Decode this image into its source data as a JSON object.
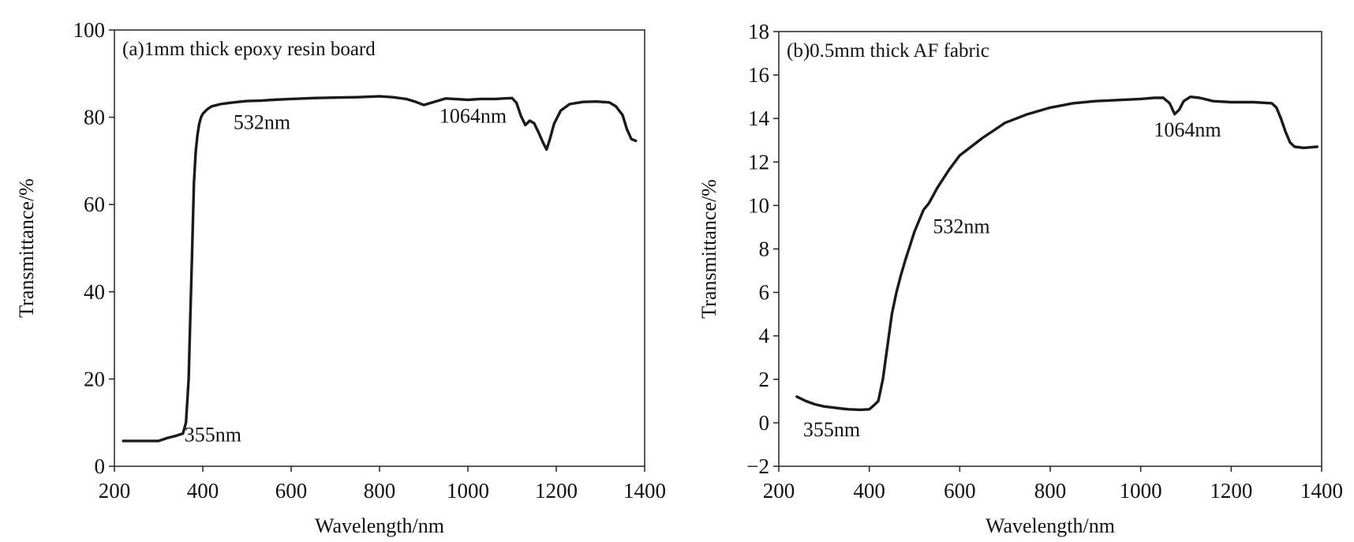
{
  "chart_data": [
    {
      "type": "line",
      "panel_label": "(a)1mm thick epoxy resin board",
      "xlabel": "Wavelength/nm",
      "ylabel": "Transmittance/%",
      "xlim": [
        200,
        1400
      ],
      "ylim": [
        0,
        100
      ],
      "xticks": [
        200,
        400,
        600,
        800,
        1000,
        1200,
        1400
      ],
      "yticks": [
        0,
        20,
        40,
        60,
        80,
        100
      ],
      "xtick_labels": [
        "200",
        "400",
        "600",
        "800",
        "1000",
        "1200",
        "1400"
      ],
      "ytick_labels": [
        "0",
        "20",
        "40",
        "60",
        "80",
        "100"
      ],
      "grid": false,
      "series": [
        {
          "x": [
            220,
            300,
            320,
            340,
            355,
            362,
            368,
            372,
            376,
            380,
            384,
            388,
            392,
            396,
            400,
            410,
            420,
            440,
            460,
            480,
            500,
            532,
            560,
            600,
            650,
            700,
            750,
            800,
            830,
            860,
            880,
            900,
            920,
            950,
            1000,
            1030,
            1064,
            1080,
            1100,
            1110,
            1120,
            1130,
            1140,
            1150,
            1160,
            1170,
            1178,
            1185,
            1195,
            1210,
            1230,
            1260,
            1290,
            1320,
            1335,
            1350,
            1360,
            1370,
            1380
          ],
          "y": [
            5.8,
            5.8,
            6.5,
            7.0,
            7.5,
            10,
            20,
            35,
            50,
            65,
            72,
            76,
            78.5,
            80,
            80.8,
            81.8,
            82.5,
            83,
            83.3,
            83.5,
            83.7,
            83.8,
            84,
            84.2,
            84.4,
            84.5,
            84.6,
            84.8,
            84.6,
            84.2,
            83.6,
            82.8,
            83.4,
            84.3,
            84.0,
            84.2,
            84.2,
            84.3,
            84.4,
            83.3,
            80.3,
            78.2,
            79.2,
            78.6,
            76.5,
            74.2,
            72.6,
            74.8,
            78.5,
            81.5,
            83.0,
            83.5,
            83.6,
            83.4,
            82.5,
            80.5,
            77.2,
            75.0,
            74.6
          ]
        }
      ],
      "annotations": [
        {
          "text": "355nm",
          "x": 355,
          "y": 7.5
        },
        {
          "text": "532nm",
          "x": 532,
          "y": 83.8
        },
        {
          "text": "1064nm",
          "x": 1064,
          "y": 84.2
        }
      ]
    },
    {
      "type": "line",
      "panel_label": "(b)0.5mm thick AF fabric",
      "xlabel": "Wavelength/nm",
      "ylabel": "Transmittance/%",
      "xlim": [
        200,
        1400
      ],
      "ylim": [
        -2,
        18
      ],
      "xticks": [
        200,
        400,
        600,
        800,
        1000,
        1200,
        1400
      ],
      "yticks": [
        -2,
        0,
        2,
        4,
        6,
        8,
        10,
        12,
        14,
        16,
        18
      ],
      "xtick_labels": [
        "200",
        "400",
        "600",
        "800",
        "1000",
        "1200",
        "1400"
      ],
      "ytick_labels": [
        "−2",
        "0",
        "2",
        "4",
        "6",
        "8",
        "10",
        "12",
        "14",
        "16",
        "18"
      ],
      "grid": false,
      "series": [
        {
          "x": [
            240,
            260,
            280,
            300,
            320,
            340,
            355,
            380,
            400,
            410,
            420,
            430,
            440,
            450,
            460,
            470,
            480,
            500,
            520,
            532,
            550,
            575,
            600,
            625,
            650,
            700,
            750,
            800,
            850,
            900,
            950,
            1000,
            1030,
            1050,
            1064,
            1075,
            1085,
            1095,
            1110,
            1130,
            1160,
            1200,
            1250,
            1290,
            1300,
            1310,
            1320,
            1330,
            1340,
            1360,
            1390
          ],
          "y": [
            1.2,
            1.0,
            0.85,
            0.75,
            0.7,
            0.65,
            0.62,
            0.6,
            0.62,
            0.8,
            1.0,
            2.0,
            3.5,
            5.0,
            6.0,
            6.8,
            7.5,
            8.8,
            9.8,
            10.1,
            10.8,
            11.6,
            12.3,
            12.7,
            13.1,
            13.8,
            14.2,
            14.5,
            14.7,
            14.8,
            14.85,
            14.9,
            14.95,
            14.95,
            14.7,
            14.2,
            14.4,
            14.8,
            15.0,
            14.95,
            14.8,
            14.75,
            14.75,
            14.7,
            14.5,
            14.0,
            13.4,
            12.9,
            12.7,
            12.65,
            12.7
          ]
        }
      ],
      "annotations": [
        {
          "text": "355nm",
          "x": 355,
          "y": 0.62
        },
        {
          "text": "532nm",
          "x": 532,
          "y": 10.1
        },
        {
          "text": "1064nm",
          "x": 1064,
          "y": 14.7
        }
      ]
    }
  ]
}
